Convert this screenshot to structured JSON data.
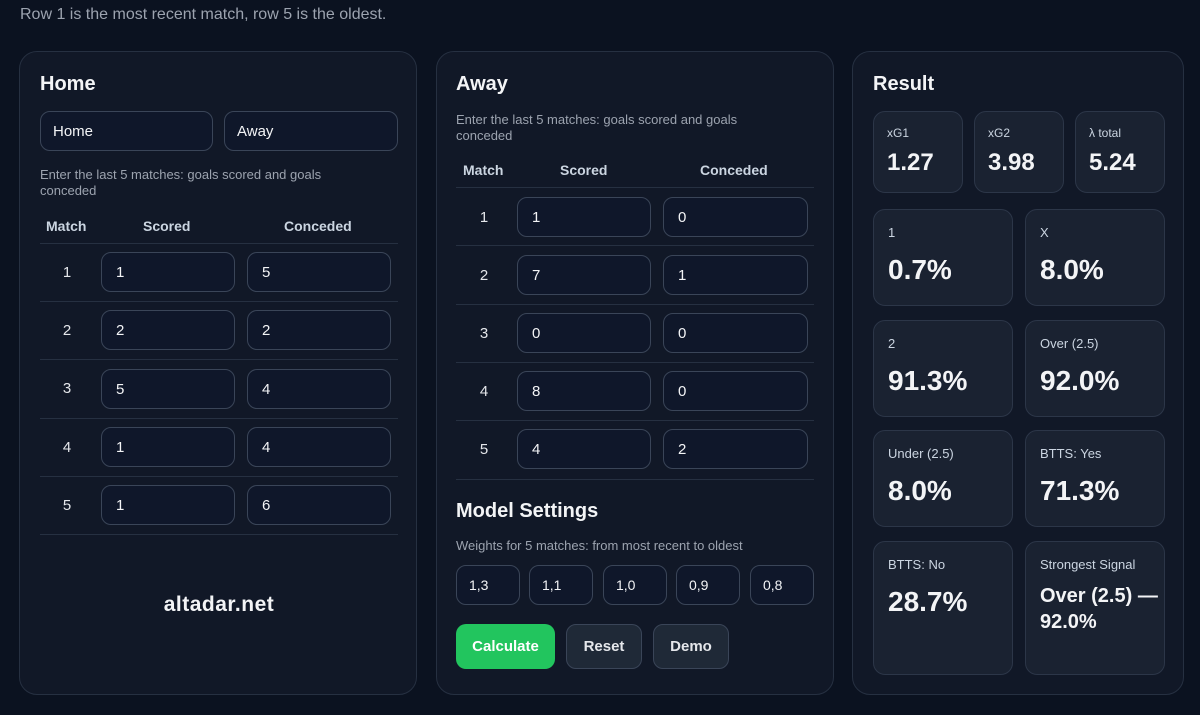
{
  "note": "Row 1 is the most recent match, row 5 is the oldest.",
  "home": {
    "title": "Home",
    "team_home": "Home",
    "team_away": "Away",
    "hint": "Enter the last 5 matches: goals scored and goals conceded",
    "col_match": "Match",
    "col_scored": "Scored",
    "col_conceded": "Conceded",
    "rows": [
      {
        "n": "1",
        "scored": "1",
        "conceded": "5"
      },
      {
        "n": "2",
        "scored": "2",
        "conceded": "2"
      },
      {
        "n": "3",
        "scored": "5",
        "conceded": "4"
      },
      {
        "n": "4",
        "scored": "1",
        "conceded": "4"
      },
      {
        "n": "5",
        "scored": "1",
        "conceded": "6"
      }
    ],
    "brand": "altadar.net"
  },
  "away": {
    "title": "Away",
    "hint": "Enter the last 5 matches: goals scored and goals conceded",
    "col_match": "Match",
    "col_scored": "Scored",
    "col_conceded": "Conceded",
    "rows": [
      {
        "n": "1",
        "scored": "1",
        "conceded": "0"
      },
      {
        "n": "2",
        "scored": "7",
        "conceded": "1"
      },
      {
        "n": "3",
        "scored": "0",
        "conceded": "0"
      },
      {
        "n": "4",
        "scored": "8",
        "conceded": "0"
      },
      {
        "n": "5",
        "scored": "4",
        "conceded": "2"
      }
    ]
  },
  "settings": {
    "title": "Model Settings",
    "hint": "Weights for 5 matches: from most recent to oldest",
    "weights": [
      "1,3",
      "1,1",
      "1,0",
      "0,9",
      "0,8"
    ]
  },
  "buttons": {
    "calculate": "Calculate",
    "reset": "Reset",
    "demo": "Demo"
  },
  "result": {
    "title": "Result",
    "stats": [
      {
        "label": "xG1",
        "value": "1.27"
      },
      {
        "label": "xG2",
        "value": "3.98"
      },
      {
        "label": "λ total",
        "value": "5.24"
      }
    ],
    "tiles": [
      {
        "label": "1",
        "value": "0.7%"
      },
      {
        "label": "X",
        "value": "8.0%"
      },
      {
        "label": "2",
        "value": "91.3%"
      },
      {
        "label": "Over (2.5)",
        "value": "92.0%"
      },
      {
        "label": "Under (2.5)",
        "value": "8.0%"
      },
      {
        "label": "BTTS: Yes",
        "value": "71.3%"
      },
      {
        "label": "BTTS: No",
        "value": "28.7%"
      },
      {
        "label": "Strongest Signal",
        "value": "Over (2.5) — 92.0%"
      }
    ]
  },
  "colors": {
    "background": "#0b1220",
    "card": "#111827",
    "accent": "#22c55e"
  }
}
